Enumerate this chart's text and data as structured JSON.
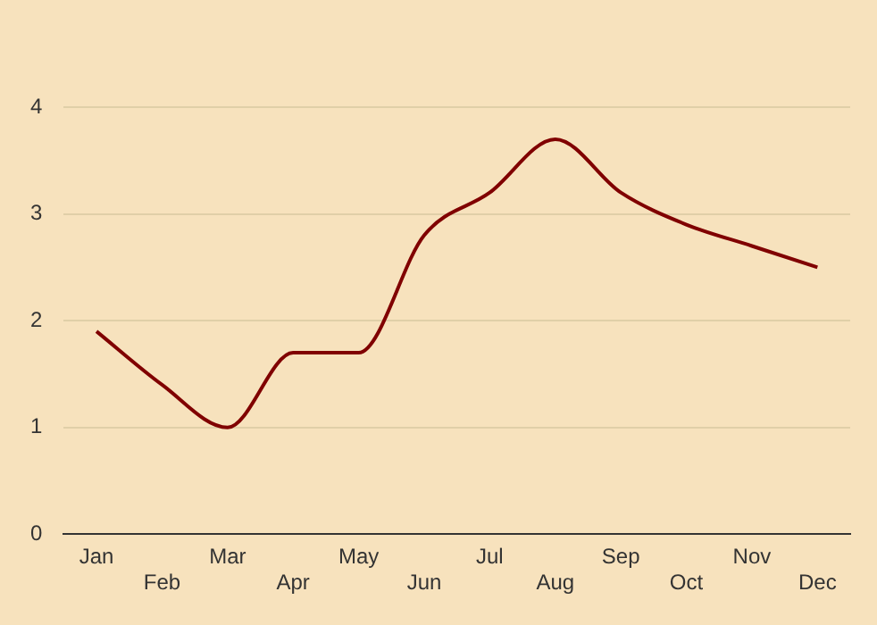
{
  "chart_data": {
    "type": "line",
    "categories": [
      "Jan",
      "Feb",
      "Mar",
      "Apr",
      "May",
      "Jun",
      "Jul",
      "Aug",
      "Sep",
      "Oct",
      "Nov",
      "Dec"
    ],
    "series": [
      {
        "color": "#800000",
        "values": [
          1.9,
          1.4,
          1.0,
          1.7,
          1.7,
          2.8,
          3.2,
          3.7,
          3.2,
          2.9,
          2.7,
          2.5
        ]
      }
    ],
    "ylim": [
      0,
      4
    ],
    "yticks": [
      0,
      1,
      2,
      3,
      4
    ],
    "grid": "y",
    "legend": false,
    "marker": "none"
  }
}
